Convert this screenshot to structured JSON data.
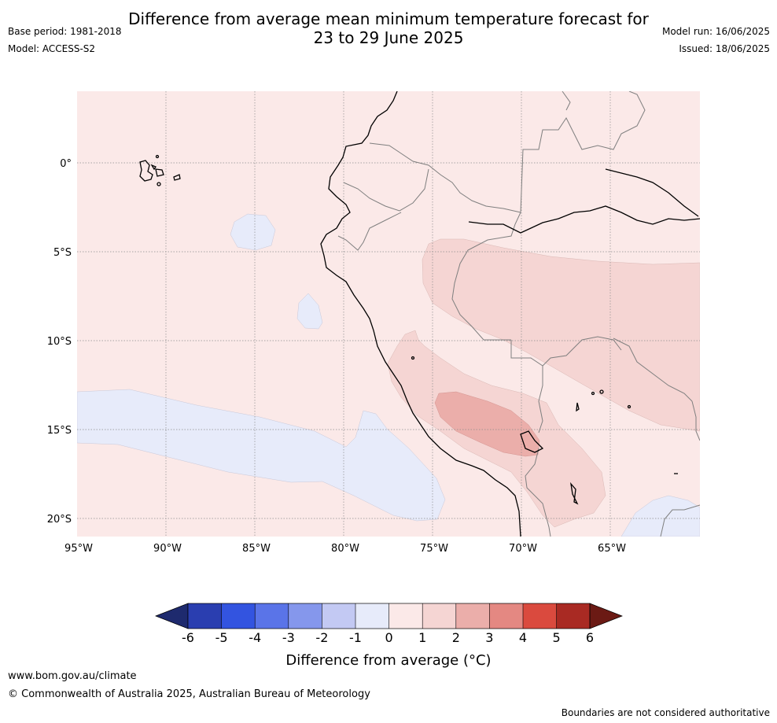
{
  "header": {
    "title_line1": "Difference from average mean minimum temperature forecast for",
    "title_line2": "23 to 29 June 2025",
    "base_period": "Base period: 1981-2018",
    "model": "Model: ACCESS-S2",
    "model_run": "Model run: 16/06/2025",
    "issued": "Issued: 18/06/2025"
  },
  "map": {
    "region": "Western South America and eastern Pacific",
    "lat_labels": [
      "0°",
      "5°S",
      "10°S",
      "15°S",
      "20°S"
    ],
    "lon_labels": [
      "95°W",
      "90°W",
      "85°W",
      "80°W",
      "75°W",
      "70°W",
      "65°W"
    ],
    "colors": {
      "ocean_land_base": "#fbe9e8",
      "band_1_2": "#f5d5d3",
      "band_2_3": "#ebaeaa",
      "band_neg1_0": "#e7ebfa",
      "coast": "#000000",
      "border": "#808080",
      "grid": "#999999"
    }
  },
  "colorbar": {
    "label": "Difference from average (°C)",
    "ticks": [
      "-6",
      "-5",
      "-4",
      "-3",
      "-2",
      "-1",
      "0",
      "1",
      "2",
      "3",
      "4",
      "5",
      "6"
    ],
    "colors": [
      "#1e2a6e",
      "#2a3eb0",
      "#3354e0",
      "#5a74e8",
      "#8597ec",
      "#c3c9f3",
      "#e7ebfa",
      "#fbe9e8",
      "#f5d5d3",
      "#ebaeaa",
      "#e48882",
      "#da4a3e",
      "#a92a23",
      "#6b1a14"
    ]
  },
  "footer": {
    "url": "www.bom.gov.au/climate",
    "copyright": "© Commonwealth of Australia 2025, Australian Bureau of Meteorology",
    "disclaimer": "Boundaries are not considered authoritative"
  }
}
